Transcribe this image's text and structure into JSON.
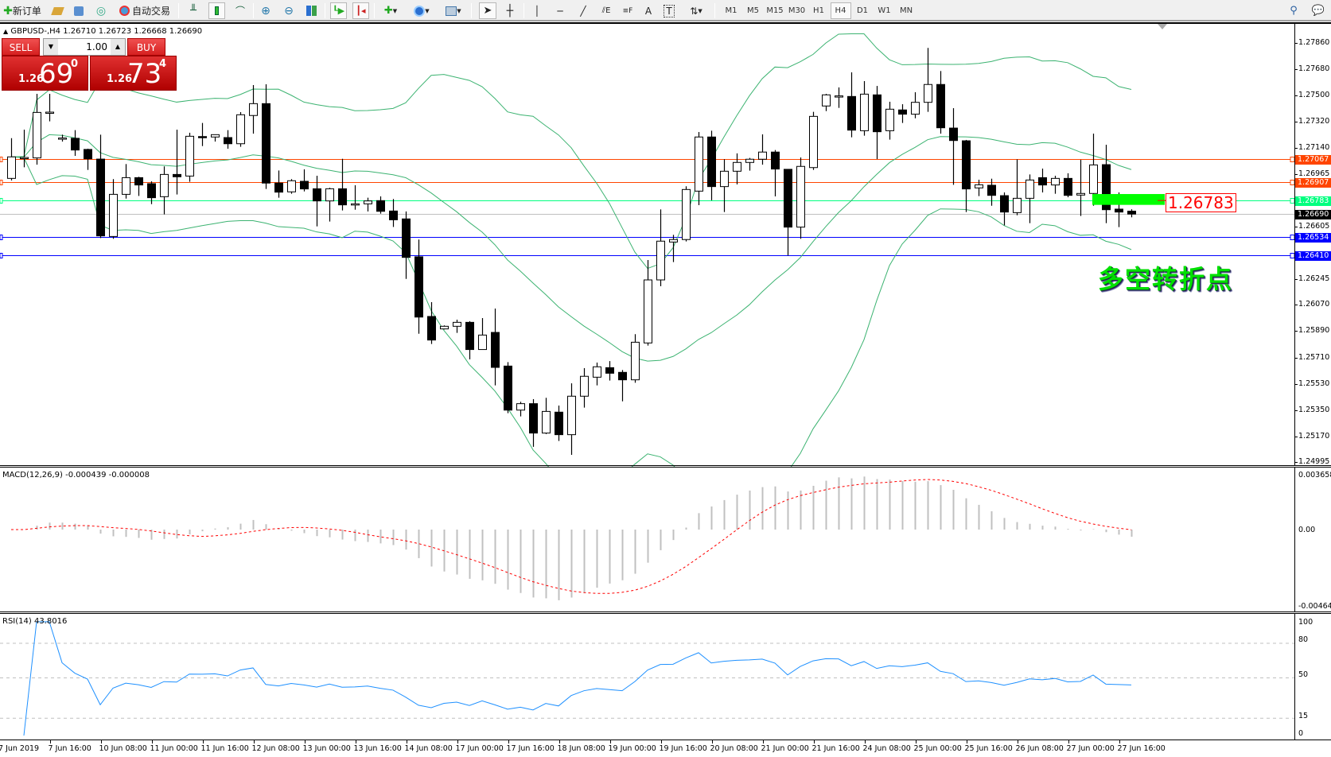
{
  "toolbar": {
    "new_order_label": "新订单",
    "auto_trading_label": "自动交易",
    "timeframes": [
      "M1",
      "M5",
      "M15",
      "M30",
      "H1",
      "H4",
      "D1",
      "W1",
      "MN"
    ],
    "active_timeframe": "H4",
    "text_tool_label": "A",
    "label_tool_label": "T"
  },
  "chart_header": {
    "text": "GBPUSD-,H4  1.26710 1.26723 1.26668 1.26690"
  },
  "one_click": {
    "sell_label": "SELL",
    "buy_label": "BUY",
    "lot": "1.00",
    "sell_price": {
      "prefix": "1.26",
      "big": "69",
      "pip": "0"
    },
    "buy_price": {
      "prefix": "1.26",
      "big": "73",
      "pip": "4"
    }
  },
  "annotation": {
    "price_box": "1.26783",
    "text": "多空转折点",
    "box_color": "#00ff00",
    "text_color": "#00e000"
  },
  "macd_panel": {
    "label": "MACD(12,26,9) -0.000439 -0.000008",
    "scale": [
      "0.003658",
      "0.00",
      "-0.004645"
    ]
  },
  "rsi_panel": {
    "label": "RSI(14) 43.8016",
    "scale": [
      "100",
      "80",
      "50",
      "15",
      "0"
    ]
  },
  "chart_data": {
    "type": "candlestick",
    "symbol": "GBPUSD-",
    "timeframe": "H4",
    "ylim": [
      1.24968,
      1.27985
    ],
    "price_ticks": [
      "1.27860",
      "1.27680",
      "1.27500",
      "1.27320",
      "1.27140",
      "1.26965",
      "1.26605",
      "1.26245",
      "1.26070",
      "1.25890",
      "1.25710",
      "1.25530",
      "1.25350",
      "1.25170",
      "1.24995"
    ],
    "time_labels": [
      "7 Jun 2019",
      "7 Jun 16:00",
      "10 Jun 08:00",
      "11 Jun 00:00",
      "11 Jun 16:00",
      "12 Jun 08:00",
      "13 Jun 00:00",
      "13 Jun 16:00",
      "14 Jun 08:00",
      "17 Jun 00:00",
      "17 Jun 16:00",
      "18 Jun 08:00",
      "19 Jun 00:00",
      "19 Jun 16:00",
      "20 Jun 08:00",
      "21 Jun 00:00",
      "21 Jun 16:00",
      "24 Jun 08:00",
      "25 Jun 00:00",
      "25 Jun 16:00",
      "26 Jun 08:00",
      "27 Jun 00:00",
      "27 Jun 16:00"
    ],
    "hlines": [
      {
        "price": "1.27067",
        "color": "#ff4500"
      },
      {
        "price": "1.26907",
        "color": "#ff4500"
      },
      {
        "price": "1.26783",
        "color": "#00ff7f"
      },
      {
        "price": "1.26690",
        "color": "#000000",
        "bid": true
      },
      {
        "price": "1.26534",
        "color": "#0000ff"
      },
      {
        "price": "1.26410",
        "color": "#0000ff"
      }
    ],
    "colors": {
      "bull_body": "#ffffff",
      "bear_body": "#000000",
      "bollinger": "#3cb371",
      "macd_hist": "#c0c0c0",
      "macd_signal": "#ff0000",
      "rsi": "#1e90ff"
    },
    "indicators": [
      "Bollinger Bands(20,2)",
      "MACD(12,26,9)",
      "RSI(14)"
    ],
    "ohlc": [
      [
        1.26934,
        1.27209,
        1.2692,
        1.27081
      ],
      [
        1.27077,
        1.27267,
        1.2701,
        1.27077
      ],
      [
        1.27074,
        1.27512,
        1.27028,
        1.27385
      ],
      [
        1.27387,
        1.27512,
        1.27324,
        1.27387
      ],
      [
        1.2721,
        1.27233,
        1.27186,
        1.2721
      ],
      [
        1.27208,
        1.27264,
        1.27088,
        1.27128
      ],
      [
        1.27132,
        1.27137,
        1.26992,
        1.27068
      ],
      [
        1.27066,
        1.27233,
        1.26526,
        1.26541
      ],
      [
        1.26537,
        1.26929,
        1.26521,
        1.26825
      ],
      [
        1.26825,
        1.27032,
        1.26796,
        1.26939
      ],
      [
        1.26939,
        1.26945,
        1.26814,
        1.26889
      ],
      [
        1.26898,
        1.26914,
        1.26758,
        1.26802
      ],
      [
        1.26809,
        1.27016,
        1.26688,
        1.26961
      ],
      [
        1.26961,
        1.27267,
        1.26824,
        1.26945
      ],
      [
        1.2695,
        1.27246,
        1.26911,
        1.27222
      ],
      [
        1.2722,
        1.27313,
        1.27155,
        1.27218
      ],
      [
        1.27217,
        1.27233,
        1.27186,
        1.27233
      ],
      [
        1.27213,
        1.27264,
        1.27137,
        1.27171
      ],
      [
        1.27171,
        1.27387,
        1.2715,
        1.27369
      ],
      [
        1.27364,
        1.27572,
        1.2724,
        1.27445
      ],
      [
        1.27445,
        1.27577,
        1.26862,
        1.26902
      ],
      [
        1.26902,
        1.26988,
        1.26802,
        1.2684
      ],
      [
        1.26842,
        1.26929,
        1.26829,
        1.26918
      ],
      [
        1.26914,
        1.26996,
        1.26845,
        1.26862
      ],
      [
        1.26863,
        1.26952,
        1.26606,
        1.2678
      ],
      [
        1.2678,
        1.2687,
        1.26639,
        1.26863
      ],
      [
        1.26863,
        1.27068,
        1.26715,
        1.26753
      ],
      [
        1.2676,
        1.26887,
        1.2672,
        1.2676
      ],
      [
        1.2676,
        1.26802,
        1.26708,
        1.2678
      ],
      [
        1.26782,
        1.26811,
        1.26693,
        1.26709
      ],
      [
        1.26711,
        1.26793,
        1.26602,
        1.26651
      ],
      [
        1.26657,
        1.26708,
        1.26247,
        1.26394
      ],
      [
        1.26398,
        1.26516,
        1.25872,
        1.25986
      ],
      [
        1.2599,
        1.26088,
        1.25802,
        1.25829
      ],
      [
        1.25905,
        1.25929,
        1.25901,
        1.25923
      ],
      [
        1.25923,
        1.25968,
        1.25878,
        1.2595
      ],
      [
        1.2595,
        1.25958,
        1.25697,
        1.25764
      ],
      [
        1.25764,
        1.25979,
        1.25764,
        1.25863
      ],
      [
        1.25881,
        1.26044,
        1.25519,
        1.25642
      ],
      [
        1.25651,
        1.25678,
        1.25329,
        1.2535
      ],
      [
        1.2535,
        1.25407,
        1.25307,
        1.25394
      ],
      [
        1.25394,
        1.25425,
        1.25099,
        1.25193
      ],
      [
        1.25193,
        1.25434,
        1.25186,
        1.25341
      ],
      [
        1.25336,
        1.25381,
        1.25139,
        1.25182
      ],
      [
        1.25182,
        1.25533,
        1.25044,
        1.25445
      ],
      [
        1.25445,
        1.25637,
        1.25367,
        1.25581
      ],
      [
        1.25575,
        1.25675,
        1.25519,
        1.25646
      ],
      [
        1.2564,
        1.25685,
        1.25552,
        1.25602
      ],
      [
        1.25608,
        1.25624,
        1.2541,
        1.25557
      ],
      [
        1.25557,
        1.25869,
        1.25537,
        1.25814
      ],
      [
        1.25809,
        1.26376,
        1.25791,
        1.2624
      ],
      [
        1.2624,
        1.26722,
        1.26197,
        1.26505
      ],
      [
        1.26499,
        1.26548,
        1.26362,
        1.26516
      ],
      [
        1.26516,
        1.2688,
        1.26503,
        1.26858
      ],
      [
        1.26847,
        1.27251,
        1.26751,
        1.27217
      ],
      [
        1.27217,
        1.2726,
        1.26784,
        1.26878
      ],
      [
        1.26878,
        1.27065,
        1.26704,
        1.26983
      ],
      [
        1.26983,
        1.27105,
        1.26893,
        1.27043
      ],
      [
        1.27043,
        1.27074,
        1.26987,
        1.27065
      ],
      [
        1.27065,
        1.27235,
        1.27028,
        1.27114
      ],
      [
        1.27114,
        1.27128,
        1.26811,
        1.26998
      ],
      [
        1.26996,
        1.26996,
        1.26407,
        1.26601
      ],
      [
        1.26601,
        1.27077,
        1.26521,
        1.27016
      ],
      [
        1.27008,
        1.27389,
        1.26992,
        1.27358
      ],
      [
        1.27429,
        1.27512,
        1.27394,
        1.27505
      ],
      [
        1.27498,
        1.27556,
        1.27416,
        1.27498
      ],
      [
        1.27494,
        1.27659,
        1.27215,
        1.27264
      ],
      [
        1.2726,
        1.27599,
        1.27226,
        1.2751
      ],
      [
        1.27505,
        1.27566,
        1.27066,
        1.27253
      ],
      [
        1.2726,
        1.27458,
        1.27199,
        1.27407
      ],
      [
        1.27402,
        1.27441,
        1.27313,
        1.27373
      ],
      [
        1.27373,
        1.27523,
        1.27345,
        1.27454
      ],
      [
        1.27454,
        1.27826,
        1.27389,
        1.27576
      ],
      [
        1.27576,
        1.27668,
        1.2724,
        1.2728
      ],
      [
        1.27278,
        1.27414,
        1.2689,
        1.27193
      ],
      [
        1.27191,
        1.27197,
        1.26704,
        1.26862
      ],
      [
        1.26869,
        1.26925,
        1.26813,
        1.2689
      ],
      [
        1.26887,
        1.26932,
        1.26747,
        1.26818
      ],
      [
        1.26816,
        1.26838,
        1.26613,
        1.26704
      ],
      [
        1.267,
        1.27064,
        1.26682,
        1.26798
      ],
      [
        1.26798,
        1.26961,
        1.26628,
        1.26923
      ],
      [
        1.26939,
        1.27001,
        1.26838,
        1.26889
      ],
      [
        1.26889,
        1.26952,
        1.26829,
        1.26934
      ],
      [
        1.26934,
        1.26969,
        1.26805,
        1.26818
      ],
      [
        1.2682,
        1.27061,
        1.26677,
        1.26831
      ],
      [
        1.26831,
        1.2724,
        1.26747,
        1.27026
      ],
      [
        1.27028,
        1.27164,
        1.26628,
        1.2672
      ],
      [
        1.26724,
        1.26838,
        1.26601,
        1.26704
      ],
      [
        1.2671,
        1.26723,
        1.26668,
        1.2669
      ]
    ]
  }
}
